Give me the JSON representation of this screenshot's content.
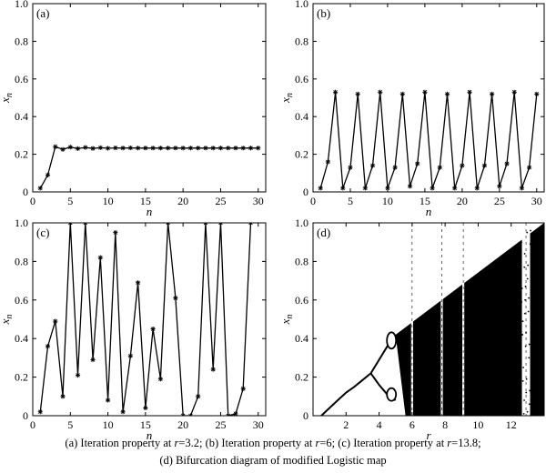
{
  "chart_data": [
    {
      "id": "a",
      "type": "line",
      "panel_label": "(a)",
      "xlabel": "n",
      "ylabel": "x",
      "ylabel_sub": "n",
      "xlim": [
        0,
        31
      ],
      "ylim": [
        0,
        1.0
      ],
      "xticks": [
        0,
        5,
        10,
        15,
        20,
        25,
        30
      ],
      "yticks": [
        0,
        0.2,
        0.4,
        0.6,
        0.8,
        1.0
      ],
      "ytick_labels": [
        "0",
        "0.2",
        "0.4",
        "0.6",
        "0.8",
        "1.0"
      ],
      "marker": "*",
      "x": [
        1,
        2,
        3,
        4,
        5,
        6,
        7,
        8,
        9,
        10,
        11,
        12,
        13,
        14,
        15,
        16,
        17,
        18,
        19,
        20,
        21,
        22,
        23,
        24,
        25,
        26,
        27,
        28,
        29,
        30
      ],
      "y": [
        0.02,
        0.09,
        0.24,
        0.226,
        0.238,
        0.23,
        0.236,
        0.231,
        0.235,
        0.232,
        0.234,
        0.233,
        0.234,
        0.233,
        0.233,
        0.233,
        0.233,
        0.233,
        0.233,
        0.233,
        0.233,
        0.233,
        0.233,
        0.233,
        0.233,
        0.233,
        0.233,
        0.233,
        0.233,
        0.233
      ]
    },
    {
      "id": "b",
      "type": "line",
      "panel_label": "(b)",
      "xlabel": "n",
      "ylabel": "x",
      "ylabel_sub": "n",
      "xlim": [
        0,
        31
      ],
      "ylim": [
        0,
        1.0
      ],
      "xticks": [
        0,
        5,
        10,
        15,
        20,
        25,
        30
      ],
      "yticks": [
        0,
        0.2,
        0.4,
        0.6,
        0.8,
        1.0
      ],
      "ytick_labels": [
        "0",
        "0.2",
        "0.4",
        "0.6",
        "0.8",
        "1.0"
      ],
      "marker": "*",
      "x": [
        1,
        2,
        3,
        4,
        5,
        6,
        7,
        8,
        9,
        10,
        11,
        12,
        13,
        14,
        15,
        16,
        17,
        18,
        19,
        20,
        21,
        22,
        23,
        24,
        25,
        26,
        27,
        28,
        29,
        30
      ],
      "y": [
        0.02,
        0.16,
        0.53,
        0.02,
        0.13,
        0.52,
        0.02,
        0.14,
        0.53,
        0.02,
        0.13,
        0.52,
        0.03,
        0.15,
        0.53,
        0.02,
        0.13,
        0.52,
        0.02,
        0.14,
        0.53,
        0.02,
        0.14,
        0.52,
        0.03,
        0.15,
        0.53,
        0.02,
        0.13,
        0.52
      ]
    },
    {
      "id": "c",
      "type": "line",
      "panel_label": "(c)",
      "xlabel": "n",
      "ylabel": "x",
      "ylabel_sub": "n",
      "xlim": [
        0,
        31
      ],
      "ylim": [
        0,
        1.0
      ],
      "xticks": [
        0,
        5,
        10,
        15,
        20,
        25,
        30
      ],
      "yticks": [
        0,
        0.2,
        0.4,
        0.6,
        0.8,
        1.0
      ],
      "ytick_labels": [
        "0",
        "0.2",
        "0.4",
        "0.6",
        "0.8",
        "1.0"
      ],
      "marker": "*",
      "x": [
        1,
        2,
        3,
        4,
        5,
        6,
        7,
        8,
        9,
        10,
        11,
        12,
        13,
        14,
        15,
        16,
        17,
        18,
        19,
        20,
        21,
        22,
        23,
        24,
        25,
        26,
        27,
        28,
        29
      ],
      "y": [
        0.02,
        0.36,
        0.49,
        0.1,
        1.0,
        0.21,
        1.0,
        0.29,
        0.82,
        0.08,
        0.95,
        0.02,
        0.31,
        0.69,
        0.04,
        0.45,
        0.19,
        1.0,
        0.61,
        0.0,
        0.0,
        0.1,
        1.0,
        0.24,
        1.0,
        0.0,
        0.01,
        0.14,
        1.0
      ]
    },
    {
      "id": "d",
      "type": "scatter",
      "panel_label": "(d)",
      "xlabel": "r",
      "ylabel": "x",
      "ylabel_sub": "n",
      "xlim": [
        0,
        14
      ],
      "ylim": [
        0,
        1.0
      ],
      "xticks": [
        2,
        4,
        6,
        8,
        10,
        12
      ],
      "yticks": [
        0,
        0.2,
        0.4,
        0.6,
        0.8,
        1.0
      ],
      "ytick_labels": [
        "0",
        "0.2",
        "0.4",
        "0.6",
        "0.8",
        "1.0"
      ],
      "description_points": {
        "branch": [
          [
            0.5,
            0.0
          ],
          [
            1.0,
            0.04
          ],
          [
            1.5,
            0.08
          ],
          [
            2.0,
            0.12
          ],
          [
            2.5,
            0.15
          ],
          [
            3.0,
            0.185
          ],
          [
            3.5,
            0.22
          ]
        ],
        "period2_upper": [
          [
            3.5,
            0.22
          ],
          [
            4.0,
            0.29
          ],
          [
            4.5,
            0.36
          ],
          [
            5.0,
            0.42
          ]
        ],
        "period2_lower": [
          [
            3.5,
            0.22
          ],
          [
            4.0,
            0.16
          ],
          [
            4.5,
            0.11
          ],
          [
            5.0,
            0.08
          ]
        ],
        "chaotic_upper_edge": [
          [
            5.0,
            0.42
          ],
          [
            14.0,
            1.0
          ]
        ],
        "windows": [
          6.0,
          7.8,
          9.1,
          12.9
        ]
      }
    }
  ],
  "caption": {
    "line1_parts": [
      "(a) Iteration property at ",
      "r",
      "=3.2; (b) Iteration property at ",
      "r",
      "=6; (c) Iteration property at ",
      "r",
      "=13.8;"
    ],
    "line2": "(d) Bifurcation diagram of modified Logistic map"
  }
}
